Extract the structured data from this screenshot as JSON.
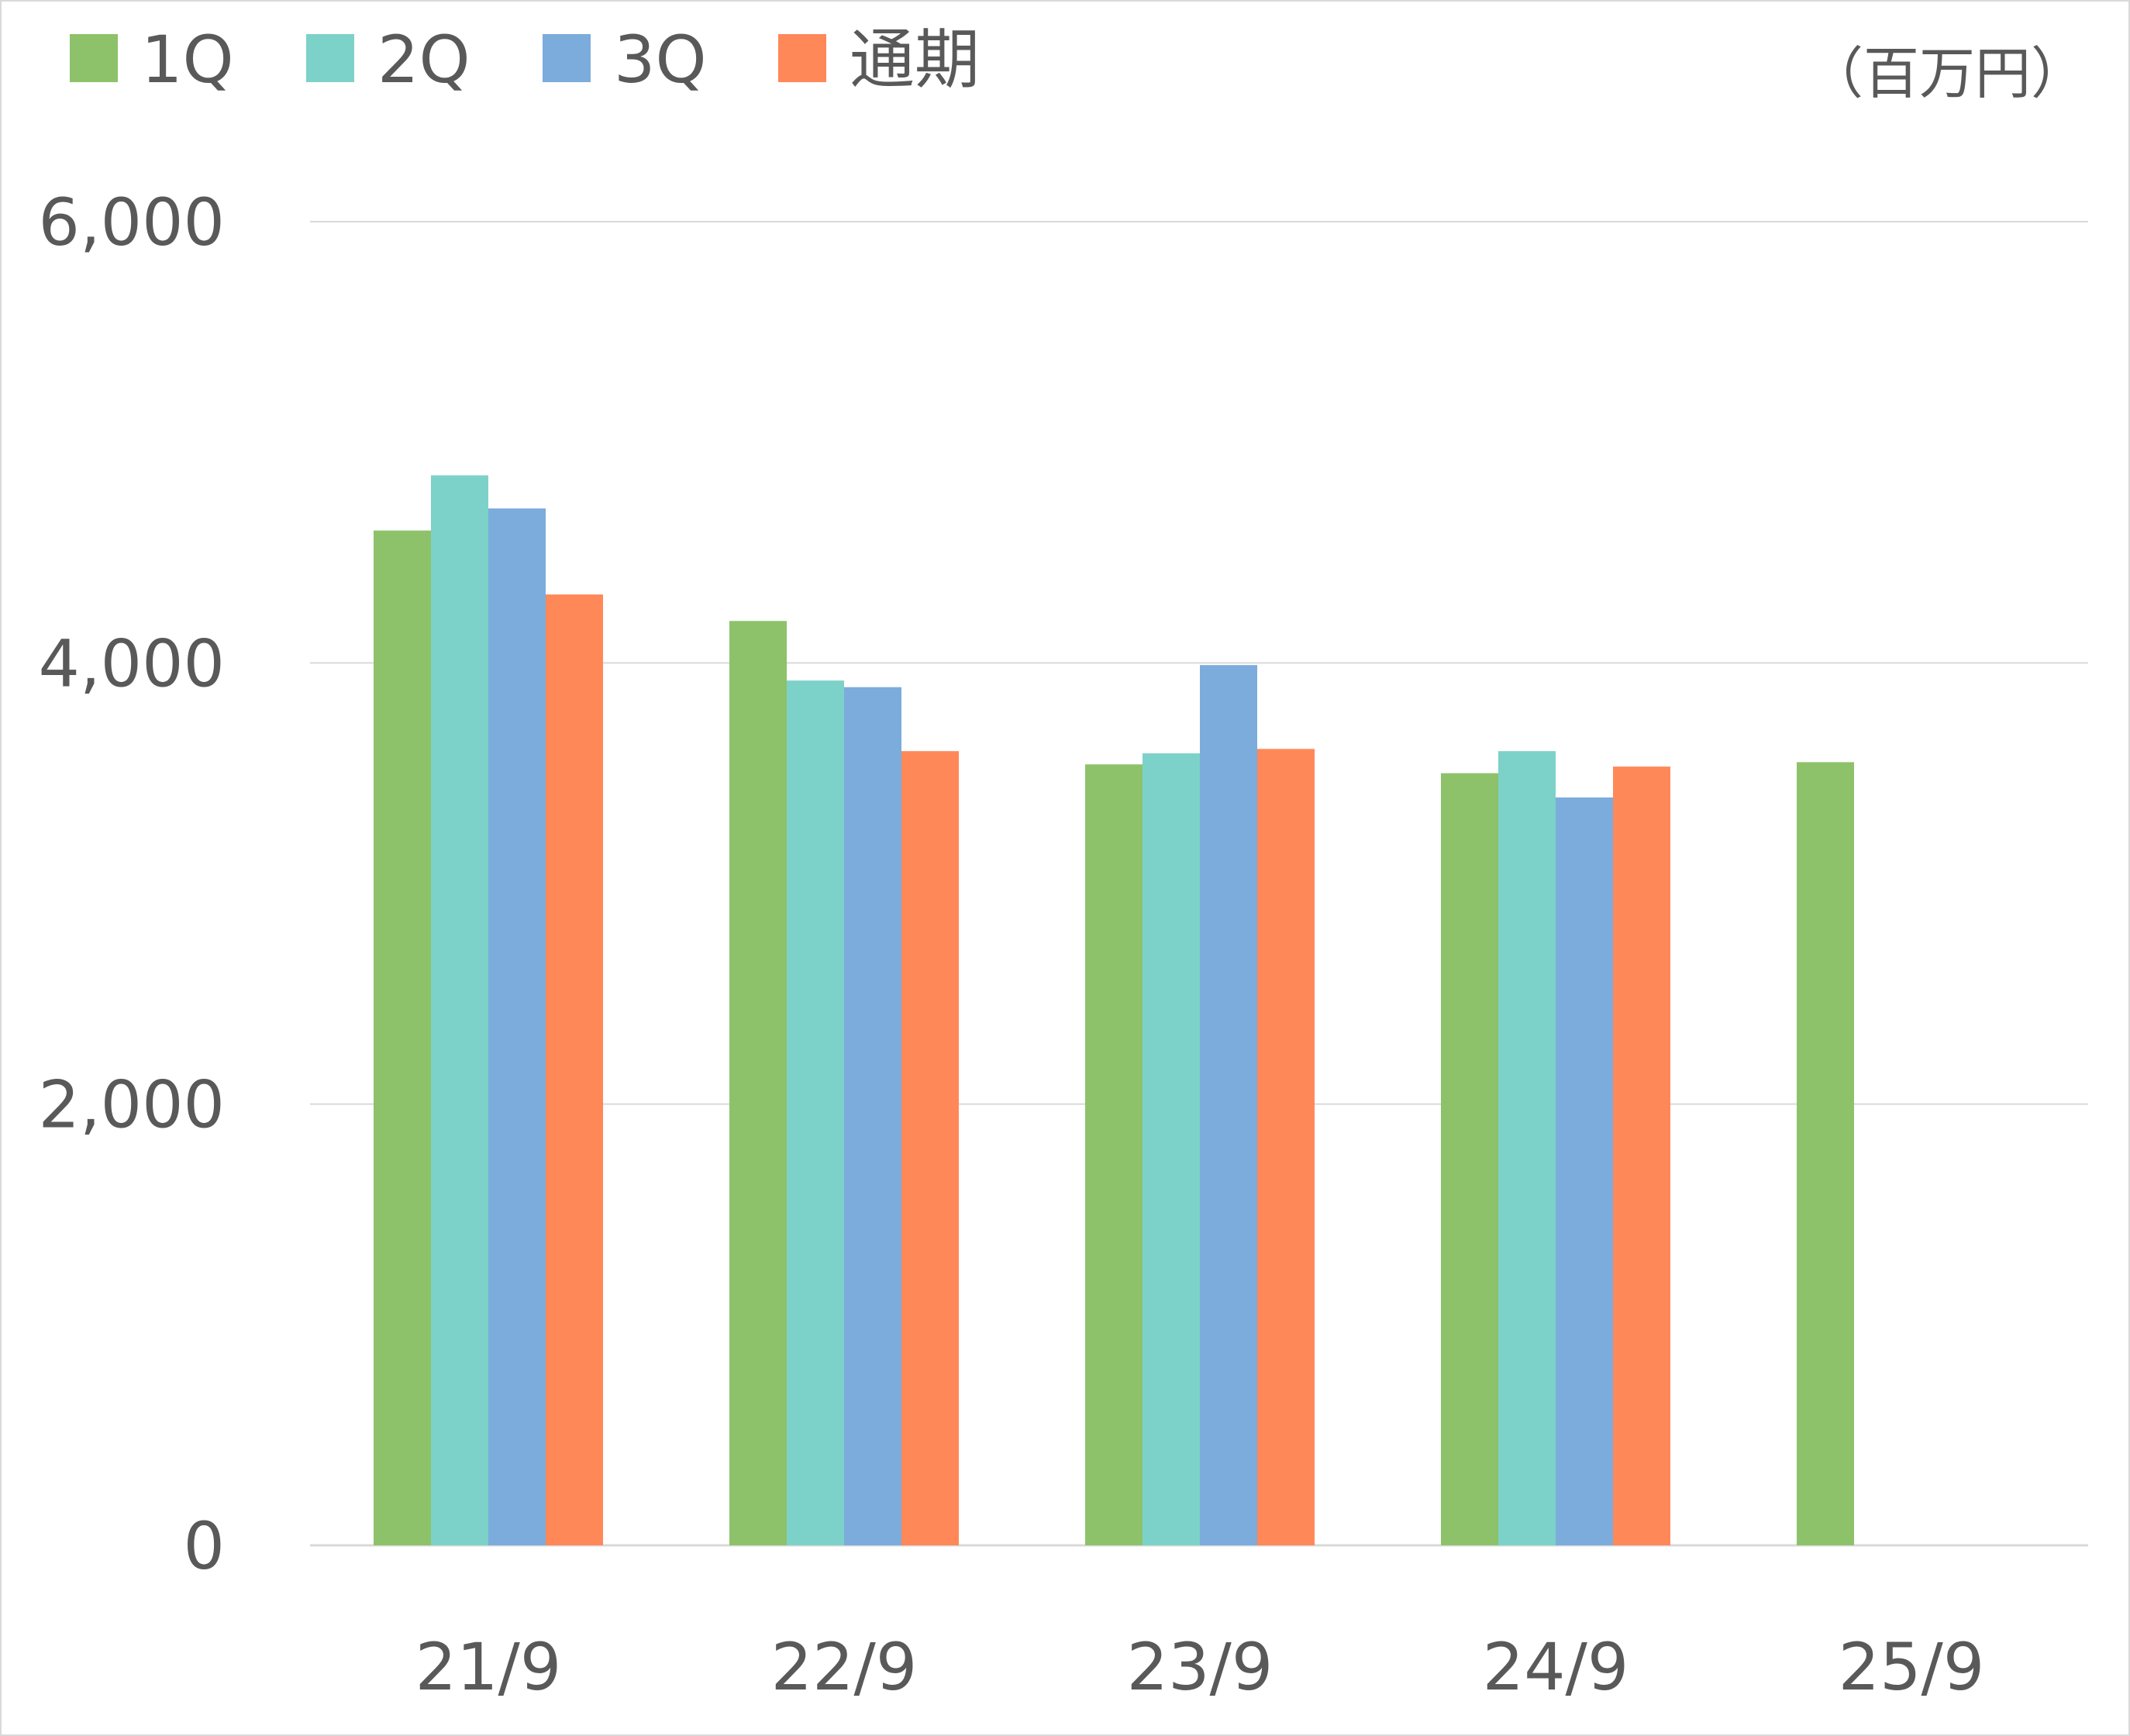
{
  "chart_data": {
    "type": "bar",
    "unit_label": "（百万円）",
    "categories": [
      "21/9",
      "22/9",
      "23/9",
      "24/9",
      "25/9"
    ],
    "series": [
      {
        "name": "1Q",
        "color": "#8dc26a",
        "values": [
          4600,
          4190,
          3540,
          3500,
          3550
        ]
      },
      {
        "name": "2Q",
        "color": "#7cd2c8",
        "values": [
          4850,
          3920,
          3590,
          3600,
          null
        ]
      },
      {
        "name": "3Q",
        "color": "#7bacdc",
        "values": [
          4700,
          3890,
          3990,
          3390,
          null
        ]
      },
      {
        "name": "通期",
        "color": "#ff8859",
        "values": [
          4310,
          3600,
          3610,
          3530,
          null
        ]
      }
    ],
    "ylim": [
      0,
      6000
    ],
    "yticks": [
      0,
      2000,
      4000,
      6000
    ],
    "ytick_labels": [
      "0",
      "2,000",
      "4,000",
      "6,000"
    ],
    "grid": true,
    "legend_position": "top-left",
    "gridline_color": "#d9d9d9",
    "axis_line_color": "#d9d9d9"
  }
}
